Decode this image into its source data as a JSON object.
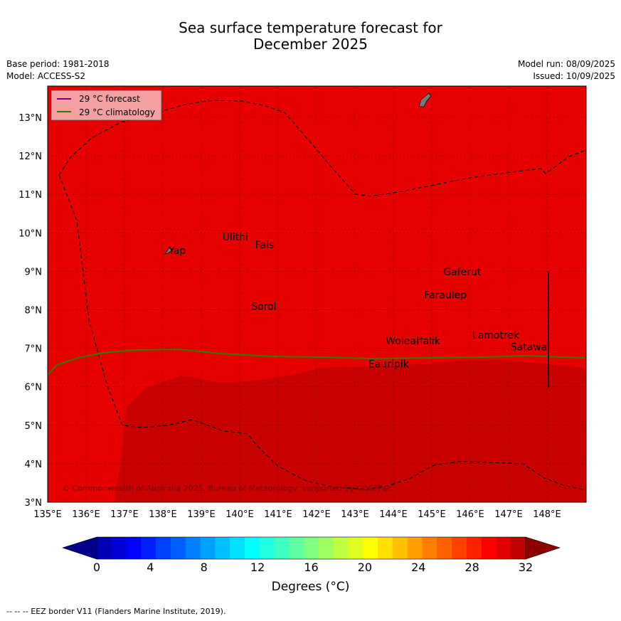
{
  "header": {
    "title_line1": "Sea surface temperature forecast for",
    "title_line2": "December 2025",
    "base_period": "Base period: 1981-2018",
    "model": "Model: ACCESS-S2",
    "model_run": "Model run: 08/09/2025",
    "issued": "Issued: 10/09/2025"
  },
  "legend": {
    "forecast": "29 °C  forecast",
    "climatology": "29 °C  climatology",
    "forecast_color": "#800080",
    "climatology_color": "#2e7d00"
  },
  "map": {
    "lon_ticks": [
      "135°E",
      "136°E",
      "137°E",
      "138°E",
      "139°E",
      "140°E",
      "141°E",
      "142°E",
      "143°E",
      "144°E",
      "145°E",
      "146°E",
      "147°E",
      "148°E"
    ],
    "lat_ticks": [
      "3°N",
      "4°N",
      "5°N",
      "6°N",
      "7°N",
      "8°N",
      "9°N",
      "10°N",
      "11°N",
      "12°N",
      "13°N"
    ],
    "places": [
      {
        "name": "Yap",
        "lon": 138.15,
        "lat": 9.45
      },
      {
        "name": "Ulithi",
        "lon": 139.55,
        "lat": 9.8
      },
      {
        "name": "Fais",
        "lon": 140.4,
        "lat": 9.6
      },
      {
        "name": "Gaferut",
        "lon": 145.3,
        "lat": 8.9
      },
      {
        "name": "Faraulep",
        "lon": 144.8,
        "lat": 8.3
      },
      {
        "name": "Sorol",
        "lon": 140.3,
        "lat": 8.0
      },
      {
        "name": "Woleai",
        "lon": 143.8,
        "lat": 7.1
      },
      {
        "name": "Ifalik",
        "lon": 144.6,
        "lat": 7.1
      },
      {
        "name": "Lamotrek",
        "lon": 146.05,
        "lat": 7.25
      },
      {
        "name": "Satawal",
        "lon": 147.05,
        "lat": 6.95
      },
      {
        "name": "Eauripik",
        "lon": 143.35,
        "lat": 6.5
      }
    ],
    "copyright": "© Commonwealth of Australia 2025, Bureau of Meteorology, supported by COSPPac",
    "background_color": "#e60000",
    "warm_region_color": "#c90000"
  },
  "colorbar": {
    "ticks": [
      "0",
      "4",
      "8",
      "12",
      "16",
      "20",
      "24",
      "28",
      "32"
    ],
    "label": "Degrees (°C)",
    "colors": [
      "#00008c",
      "#0000b4",
      "#0000d8",
      "#0000ff",
      "#0020ff",
      "#0040ff",
      "#0060ff",
      "#0080ff",
      "#00a0ff",
      "#00c0ff",
      "#00e0ff",
      "#00ffff",
      "#20ffe0",
      "#40ffc0",
      "#60ffa0",
      "#80ff80",
      "#a0ff60",
      "#c0ff40",
      "#e0ff20",
      "#ffff00",
      "#ffe000",
      "#ffc000",
      "#ffa000",
      "#ff8000",
      "#ff6000",
      "#ff4000",
      "#ff2000",
      "#ff0000",
      "#e00000",
      "#c00000",
      "#8c0000"
    ]
  },
  "footnote": "--  --  -- EEZ border V11 (Flanders Marine Institute, 2019)."
}
